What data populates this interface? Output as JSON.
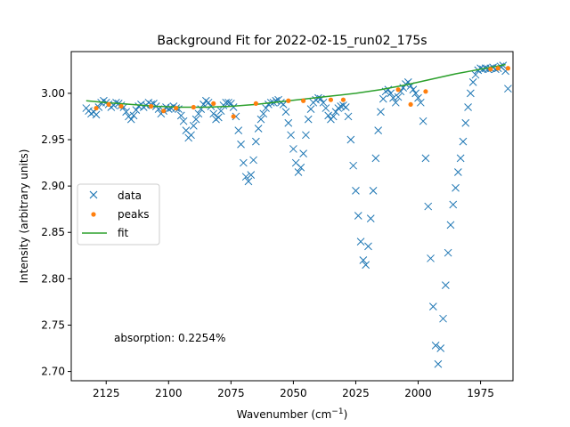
{
  "chart_data": {
    "type": "scatter",
    "title": "Background Fit for 2022-02-15_run02_175s",
    "xlabel": "Wavenumber (cm",
    "xlabel_sup": "−1",
    "xlabel_end": ")",
    "ylabel": "Intensity (arbitrary units)",
    "xlim": [
      2139,
      1962
    ],
    "ylim": [
      2.69,
      3.045
    ],
    "x_ticks": [
      2125,
      2100,
      2075,
      2050,
      2025,
      2000,
      1975
    ],
    "x_tick_labels": [
      "2125",
      "2100",
      "2075",
      "2050",
      "2025",
      "2000",
      "1975"
    ],
    "y_ticks": [
      2.7,
      2.75,
      2.8,
      2.85,
      2.9,
      2.95,
      3.0
    ],
    "y_tick_labels": [
      "2.70",
      "2.75",
      "2.80",
      "2.85",
      "2.90",
      "2.95",
      "3.00"
    ],
    "legend_position": "center-left",
    "annotation": "absorption: 0.2254%",
    "colors": {
      "data": "#1f77b4",
      "peaks": "#ff7f0e",
      "fit": "#2ca02c"
    },
    "series": [
      {
        "name": "data",
        "marker": "x",
        "points": [
          [
            2133,
            2.984
          ],
          [
            2132,
            2.981
          ],
          [
            2131,
            2.978
          ],
          [
            2130,
            2.98
          ],
          [
            2129,
            2.977
          ],
          [
            2128,
            2.985
          ],
          [
            2127,
            2.99
          ],
          [
            2126,
            2.992
          ],
          [
            2125,
            2.99
          ],
          [
            2124,
            2.988
          ],
          [
            2123,
            2.985
          ],
          [
            2122,
            2.987
          ],
          [
            2121,
            2.99
          ],
          [
            2120,
            2.989
          ],
          [
            2119,
            2.987
          ],
          [
            2118,
            2.985
          ],
          [
            2117,
            2.98
          ],
          [
            2116,
            2.975
          ],
          [
            2115,
            2.972
          ],
          [
            2114,
            2.976
          ],
          [
            2113,
            2.982
          ],
          [
            2112,
            2.986
          ],
          [
            2111,
            2.988
          ],
          [
            2110,
            2.985
          ],
          [
            2109,
            2.987
          ],
          [
            2108,
            2.99
          ],
          [
            2107,
            2.988
          ],
          [
            2106,
            2.989
          ],
          [
            2105,
            2.986
          ],
          [
            2104,
            2.983
          ],
          [
            2103,
            2.978
          ],
          [
            2102,
            2.981
          ],
          [
            2101,
            2.985
          ],
          [
            2100,
            2.983
          ],
          [
            2099,
            2.984
          ],
          [
            2098,
            2.986
          ],
          [
            2097,
            2.984
          ],
          [
            2096,
            2.983
          ],
          [
            2095,
            2.976
          ],
          [
            2094,
            2.97
          ],
          [
            2093,
            2.96
          ],
          [
            2092,
            2.952
          ],
          [
            2091,
            2.955
          ],
          [
            2090,
            2.965
          ],
          [
            2089,
            2.972
          ],
          [
            2088,
            2.978
          ],
          [
            2087,
            2.983
          ],
          [
            2086,
            2.988
          ],
          [
            2085,
            2.992
          ],
          [
            2084,
            2.99
          ],
          [
            2083,
            2.986
          ],
          [
            2082,
            2.978
          ],
          [
            2081,
            2.972
          ],
          [
            2080,
            2.974
          ],
          [
            2079,
            2.981
          ],
          [
            2078,
            2.987
          ],
          [
            2077,
            2.99
          ],
          [
            2076,
            2.99
          ],
          [
            2075,
            2.989
          ],
          [
            2074,
            2.985
          ],
          [
            2073,
            2.975
          ],
          [
            2072,
            2.96
          ],
          [
            2071,
            2.945
          ],
          [
            2070,
            2.925
          ],
          [
            2069,
            2.91
          ],
          [
            2068,
            2.905
          ],
          [
            2067,
            2.912
          ],
          [
            2066,
            2.928
          ],
          [
            2065,
            2.948
          ],
          [
            2064,
            2.962
          ],
          [
            2063,
            2.972
          ],
          [
            2062,
            2.978
          ],
          [
            2061,
            2.984
          ],
          [
            2060,
            2.988
          ],
          [
            2059,
            2.99
          ],
          [
            2058,
            2.99
          ],
          [
            2057,
            2.992
          ],
          [
            2056,
            2.993
          ],
          [
            2055,
            2.99
          ],
          [
            2054,
            2.988
          ],
          [
            2053,
            2.98
          ],
          [
            2052,
            2.968
          ],
          [
            2051,
            2.955
          ],
          [
            2050,
            2.94
          ],
          [
            2049,
            2.925
          ],
          [
            2048,
            2.915
          ],
          [
            2047,
            2.92
          ],
          [
            2046,
            2.935
          ],
          [
            2045,
            2.955
          ],
          [
            2044,
            2.972
          ],
          [
            2043,
            2.983
          ],
          [
            2042,
            2.99
          ],
          [
            2041,
            2.993
          ],
          [
            2040,
            2.995
          ],
          [
            2039,
            2.994
          ],
          [
            2038,
            2.99
          ],
          [
            2037,
            2.984
          ],
          [
            2036,
            2.976
          ],
          [
            2035,
            2.972
          ],
          [
            2034,
            2.975
          ],
          [
            2033,
            2.98
          ],
          [
            2032,
            2.984
          ],
          [
            2031,
            2.986
          ],
          [
            2030,
            2.987
          ],
          [
            2029,
            2.985
          ],
          [
            2028,
            2.975
          ],
          [
            2027,
            2.95
          ],
          [
            2026,
            2.922
          ],
          [
            2025,
            2.895
          ],
          [
            2024,
            2.868
          ],
          [
            2023,
            2.84
          ],
          [
            2022,
            2.82
          ],
          [
            2021,
            2.815
          ],
          [
            2020,
            2.835
          ],
          [
            2019,
            2.865
          ],
          [
            2018,
            2.895
          ],
          [
            2017,
            2.93
          ],
          [
            2016,
            2.96
          ],
          [
            2015,
            2.98
          ],
          [
            2014,
            2.994
          ],
          [
            2013,
            3.002
          ],
          [
            2012,
            3.004
          ],
          [
            2011,
            3.0
          ],
          [
            2010,
            2.995
          ],
          [
            2009,
            2.99
          ],
          [
            2008,
            2.996
          ],
          [
            2007,
            3.002
          ],
          [
            2006,
            3.006
          ],
          [
            2005,
            3.01
          ],
          [
            2004,
            3.012
          ],
          [
            2003,
            3.008
          ],
          [
            2002,
            3.004
          ],
          [
            2001,
            3.0
          ],
          [
            2000,
            2.995
          ],
          [
            1999,
            2.99
          ],
          [
            1998,
            2.97
          ],
          [
            1997,
            2.93
          ],
          [
            1996,
            2.878
          ],
          [
            1995,
            2.822
          ],
          [
            1994,
            2.77
          ],
          [
            1993,
            2.728
          ],
          [
            1992,
            2.708
          ],
          [
            1991,
            2.725
          ],
          [
            1990,
            2.757
          ],
          [
            1989,
            2.793
          ],
          [
            1988,
            2.828
          ],
          [
            1987,
            2.858
          ],
          [
            1986,
            2.88
          ],
          [
            1985,
            2.898
          ],
          [
            1984,
            2.915
          ],
          [
            1983,
            2.93
          ],
          [
            1982,
            2.948
          ],
          [
            1981,
            2.968
          ],
          [
            1980,
            2.985
          ],
          [
            1979,
            3.0
          ],
          [
            1978,
            3.012
          ],
          [
            1977,
            3.02
          ],
          [
            1976,
            3.025
          ],
          [
            1975,
            3.027
          ],
          [
            1974,
            3.026
          ],
          [
            1973,
            3.027
          ],
          [
            1972,
            3.026
          ],
          [
            1971,
            3.027
          ],
          [
            1970,
            3.028
          ],
          [
            1969,
            3.026
          ],
          [
            1968,
            3.027
          ],
          [
            1967,
            3.029
          ],
          [
            1966,
            3.03
          ],
          [
            1965,
            3.024
          ],
          [
            1964,
            3.005
          ]
        ]
      },
      {
        "name": "peaks",
        "marker": "o",
        "points": [
          [
            2129,
            2.984
          ],
          [
            2124,
            2.988
          ],
          [
            2119,
            2.986
          ],
          [
            2107,
            2.986
          ],
          [
            2102,
            2.981
          ],
          [
            2097,
            2.984
          ],
          [
            2090,
            2.985
          ],
          [
            2082,
            2.989
          ],
          [
            2074,
            2.975
          ],
          [
            2065,
            2.989
          ],
          [
            2052,
            2.992
          ],
          [
            2046,
            2.992
          ],
          [
            2035,
            2.993
          ],
          [
            2030,
            2.993
          ],
          [
            2008,
            3.004
          ],
          [
            2003,
            2.988
          ],
          [
            1997,
            3.002
          ],
          [
            1971,
            3.026
          ],
          [
            1968,
            3.027
          ],
          [
            1964,
            3.027
          ]
        ]
      },
      {
        "name": "fit",
        "marker": "line",
        "points": [
          [
            2133,
            2.992
          ],
          [
            2125,
            2.99
          ],
          [
            2115,
            2.988
          ],
          [
            2105,
            2.986
          ],
          [
            2095,
            2.985
          ],
          [
            2085,
            2.985
          ],
          [
            2075,
            2.986
          ],
          [
            2065,
            2.988
          ],
          [
            2055,
            2.991
          ],
          [
            2045,
            2.994
          ],
          [
            2035,
            2.997
          ],
          [
            2025,
            3.0
          ],
          [
            2015,
            3.004
          ],
          [
            2005,
            3.009
          ],
          [
            1995,
            3.015
          ],
          [
            1985,
            3.021
          ],
          [
            1975,
            3.026
          ],
          [
            1965,
            3.031
          ]
        ]
      }
    ]
  }
}
